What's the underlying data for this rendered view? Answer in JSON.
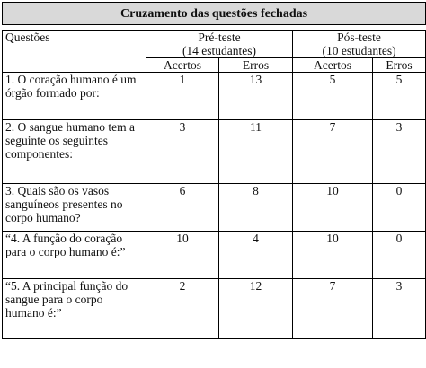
{
  "title": "Cruzamento das questões fechadas",
  "header": {
    "questions_label": "Questões",
    "pre": {
      "line1": "Pré-teste",
      "line2": "(14 estudantes)"
    },
    "post": {
      "line1": "Pós-teste",
      "line2": "(10 estudantes)"
    },
    "acertos": "Acertos",
    "erros": "Erros"
  },
  "rows": [
    {
      "q": "1. O coração humano é um órgão formado por:",
      "pre_a": "1",
      "pre_e": "13",
      "post_a": "5",
      "post_e": "5"
    },
    {
      "q": "2. O sangue humano tem a seguinte os seguintes componentes:",
      "pre_a": "3",
      "pre_e": "11",
      "post_a": "7",
      "post_e": "3"
    },
    {
      "q": "3. Quais são os vasos sanguíneos presentes no corpo humano?",
      "pre_a": "6",
      "pre_e": "8",
      "post_a": "10",
      "post_e": "0"
    },
    {
      "q": "“4. A função do coração para o corpo humano é:”",
      "pre_a": "10",
      "pre_e": "4",
      "post_a": "10",
      "post_e": "0"
    },
    {
      "q": "“5. A principal função do sangue para o corpo humano é:”",
      "pre_a": "2",
      "pre_e": "12",
      "post_a": "7",
      "post_e": "3"
    }
  ]
}
